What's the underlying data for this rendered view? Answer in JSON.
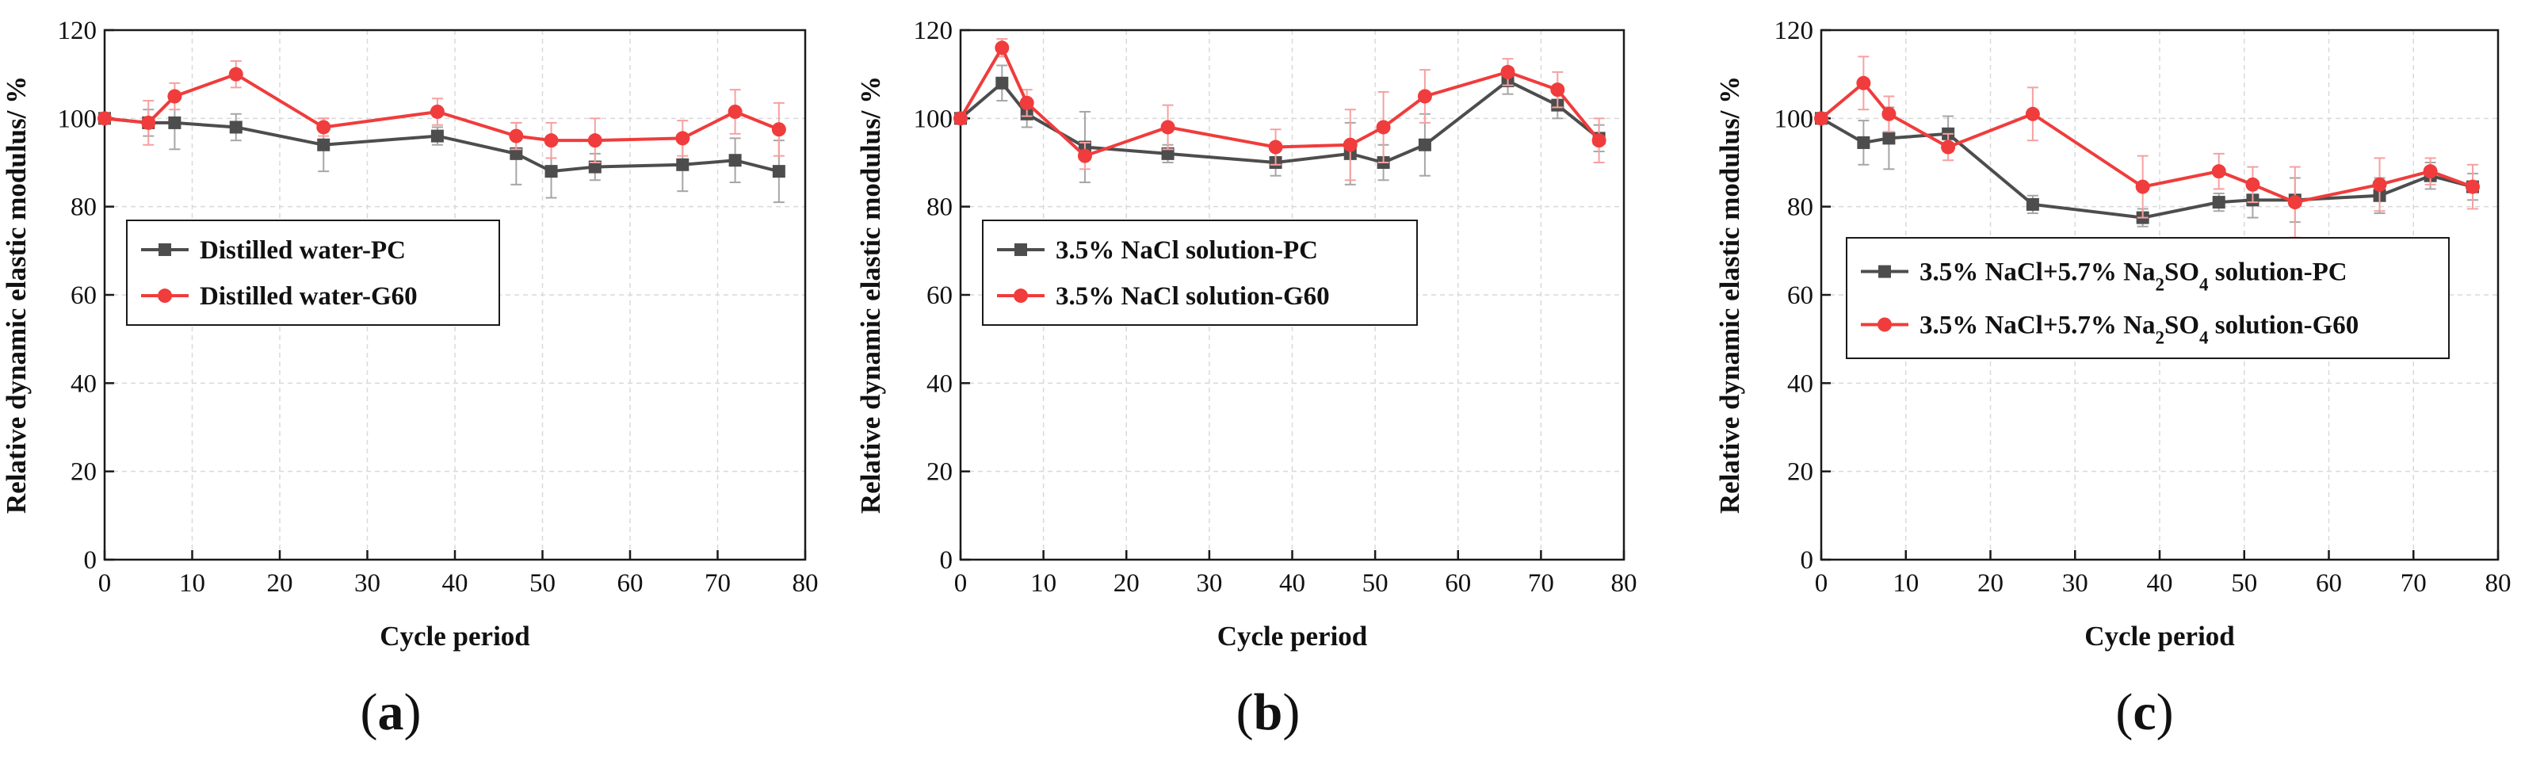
{
  "figure": {
    "colors": {
      "pc": "#4d4d4d",
      "g60": "#f03c3c",
      "axis": "#1a1a1a",
      "grid": "#d9d9d9"
    }
  },
  "chart_data": [
    {
      "type": "line",
      "panel_label": {
        "open": "(",
        "letter": "a",
        "close": ")"
      },
      "xlabel": "Cycle period",
      "ylabel": "Relative dynamic elastic modulus/ %",
      "xlim": [
        0,
        80
      ],
      "ylim": [
        0,
        120
      ],
      "xticks": [
        0,
        10,
        20,
        30,
        40,
        50,
        60,
        70,
        80
      ],
      "yticks": [
        0,
        20,
        40,
        60,
        80,
        100,
        120
      ],
      "legend_placement": "center-left",
      "x": [
        0,
        5,
        8,
        15,
        25,
        38,
        47,
        51,
        56,
        66,
        72,
        77
      ],
      "series": [
        {
          "key": "pc",
          "name": "Distilled water-PC",
          "marker": "square",
          "values": [
            100,
            99,
            99,
            98,
            94,
            96,
            92,
            88,
            89,
            89.5,
            90.5,
            88
          ],
          "errors": [
            1,
            3,
            6,
            3,
            6,
            2,
            7,
            6,
            3,
            6,
            5,
            7
          ]
        },
        {
          "key": "g60",
          "name": "Distilled water-G60",
          "marker": "circle",
          "values": [
            100,
            99,
            105,
            110,
            98,
            101.5,
            96,
            95,
            95,
            95.5,
            101.5,
            97.5
          ],
          "errors": [
            1,
            5,
            3,
            3,
            2,
            3,
            3,
            4,
            5,
            4,
            5,
            6
          ]
        }
      ]
    },
    {
      "type": "line",
      "panel_label": {
        "open": "(",
        "letter": "b",
        "close": ")"
      },
      "xlabel": "Cycle period",
      "ylabel": "Relative dynamic elastic modulus/ %",
      "xlim": [
        0,
        80
      ],
      "ylim": [
        0,
        120
      ],
      "xticks": [
        0,
        10,
        20,
        30,
        40,
        50,
        60,
        70,
        80
      ],
      "yticks": [
        0,
        20,
        40,
        60,
        80,
        100,
        120
      ],
      "legend_placement": "center-left",
      "x": [
        0,
        5,
        8,
        15,
        25,
        38,
        47,
        51,
        56,
        66,
        72,
        77
      ],
      "series": [
        {
          "key": "pc",
          "name": "3.5% NaCl solution-PC",
          "marker": "square",
          "values": [
            100,
            108,
            101,
            93.5,
            92,
            90,
            92,
            90,
            94,
            108.5,
            103,
            95.5
          ],
          "errors": [
            1,
            4,
            3,
            8,
            2,
            3,
            7,
            4,
            7,
            3,
            3,
            3
          ]
        },
        {
          "key": "g60",
          "name": "3.5% NaCl solution-G60",
          "marker": "circle",
          "values": [
            100,
            116,
            103.5,
            91.5,
            98,
            93.5,
            94,
            98,
            105,
            110.5,
            106.5,
            95
          ],
          "errors": [
            1,
            2,
            3,
            3,
            5,
            4,
            8,
            8,
            6,
            3,
            4,
            5
          ]
        }
      ]
    },
    {
      "type": "line",
      "panel_label": {
        "open": "(",
        "letter": "c",
        "close": ")"
      },
      "xlabel": "Cycle period",
      "ylabel": "Relative dynamic elastic modulus/ %",
      "xlim": [
        0,
        80
      ],
      "ylim": [
        0,
        120
      ],
      "xticks": [
        0,
        10,
        20,
        30,
        40,
        50,
        60,
        70,
        80
      ],
      "yticks": [
        0,
        20,
        40,
        60,
        80,
        100,
        120
      ],
      "legend_placement": "center-left",
      "x": [
        0,
        5,
        8,
        15,
        25,
        38,
        47,
        51,
        56,
        66,
        72,
        77
      ],
      "series": [
        {
          "key": "pc",
          "name": "3.5% NaCl+5.7% Na2SO4 solution-PC",
          "name_parts": {
            "prefix": "3.5% NaCl+5.7% Na",
            "sub1": "2",
            "mid": "SO",
            "sub2": "4",
            "suffix": " solution-PC"
          },
          "marker": "square",
          "values": [
            100,
            94.5,
            95.5,
            96.5,
            80.5,
            77.5,
            81,
            81.5,
            81.5,
            82.5,
            87,
            84.5
          ],
          "errors": [
            1,
            5,
            7,
            4,
            2,
            2,
            2,
            4,
            5,
            4,
            3,
            3
          ]
        },
        {
          "key": "g60",
          "name": "3.5% NaCl+5.7% Na2SO4 solution-G60",
          "name_parts": {
            "prefix": "3.5% NaCl+5.7% Na",
            "sub1": "2",
            "mid": "SO",
            "sub2": "4",
            "suffix": " solution-G60"
          },
          "marker": "circle",
          "values": [
            100,
            108,
            101,
            93.5,
            101,
            84.5,
            88,
            85,
            81,
            85,
            88,
            84.5
          ],
          "errors": [
            1,
            6,
            4,
            3,
            6,
            7,
            4,
            4,
            8,
            6,
            3,
            5
          ]
        }
      ]
    }
  ]
}
